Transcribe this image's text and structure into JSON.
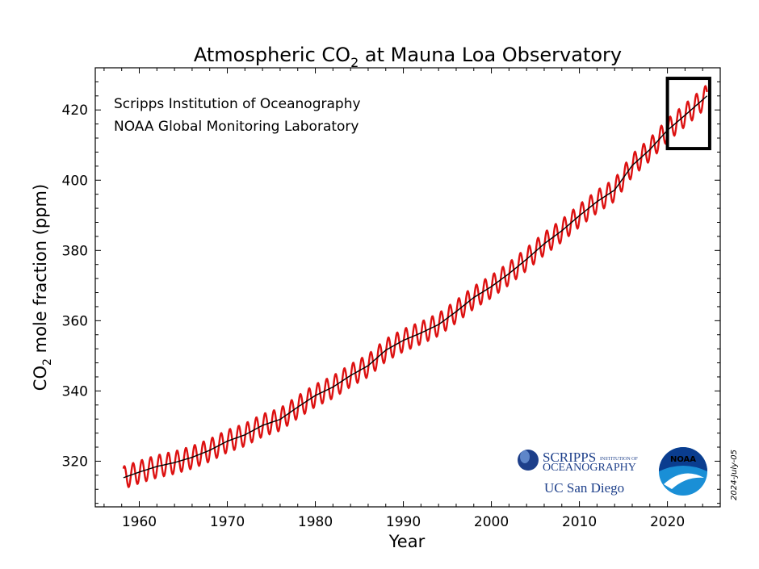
{
  "chart_data": {
    "type": "line",
    "title_main": "Atmospheric CO",
    "title_sub": "2",
    "title_rest": " at Mauna Loa Observatory",
    "xlabel": "Year",
    "ylabel_main": "CO",
    "ylabel_sub": "2",
    "ylabel_rest": " mole fraction (ppm)",
    "xlim": [
      1955,
      2026
    ],
    "ylim": [
      307,
      432
    ],
    "xticks": [
      1960,
      1970,
      1980,
      1990,
      2000,
      2010,
      2020
    ],
    "yticks": [
      320,
      340,
      360,
      380,
      400,
      420
    ],
    "annotation_lines": [
      "Scripps Institution of Oceanography",
      "NOAA Global Monitoring Laboratory"
    ],
    "date_stamp": "2024-July-05",
    "highlight_box": {
      "x": [
        2020.0,
        2024.8
      ],
      "y": [
        409,
        429
      ]
    },
    "series": [
      {
        "name": "",
        "color": "#dd1111",
        "style": "monthly, with seasonal cycle",
        "seasonal_amplitude_ppm": 3.2,
        "x": [
          1958.2,
          1960,
          1962,
          1964,
          1966,
          1968,
          1970,
          1972,
          1974,
          1976,
          1978,
          1980,
          1982,
          1984,
          1986,
          1988,
          1990,
          1992,
          1994,
          1996,
          1998,
          2000,
          2002,
          2004,
          2006,
          2008,
          2010,
          2012,
          2014,
          2016,
          2018,
          2020,
          2022,
          2024.5
        ],
        "y": [
          315.3,
          316.9,
          318.5,
          319.6,
          321.1,
          323.1,
          325.7,
          327.5,
          330.2,
          331.9,
          335.4,
          338.7,
          341.1,
          344.4,
          347.2,
          351.6,
          354.4,
          356.5,
          358.9,
          362.6,
          366.6,
          369.7,
          373.4,
          377.5,
          381.9,
          385.6,
          389.9,
          393.9,
          397.2,
          404.2,
          408.7,
          414.2,
          418.5,
          424.0
        ]
      },
      {
        "name": "",
        "color": "#000000",
        "style": "seasonally adjusted trend",
        "x": [
          1958.2,
          1960,
          1962,
          1964,
          1966,
          1968,
          1970,
          1972,
          1974,
          1976,
          1978,
          1980,
          1982,
          1984,
          1986,
          1988,
          1990,
          1992,
          1994,
          1996,
          1998,
          2000,
          2002,
          2004,
          2006,
          2008,
          2010,
          2012,
          2014,
          2016,
          2018,
          2020,
          2022,
          2024.5
        ],
        "y": [
          315.3,
          316.9,
          318.5,
          319.6,
          321.1,
          323.1,
          325.7,
          327.5,
          330.2,
          331.9,
          335.4,
          338.7,
          341.1,
          344.4,
          347.2,
          351.6,
          354.4,
          356.5,
          358.9,
          362.6,
          366.6,
          369.7,
          373.4,
          377.5,
          381.9,
          385.6,
          389.9,
          393.9,
          397.2,
          404.2,
          408.7,
          414.2,
          418.5,
          424.0
        ]
      }
    ]
  },
  "logos": {
    "scripps_line1": "SCRIPPS",
    "scripps_line1_small": "INSTITUTION OF",
    "scripps_line2": "OCEANOGRAPHY",
    "ucsd": "UC San Diego",
    "noaa": "NOAA",
    "scripps_color": "#1d3f8a",
    "noaa_color": "#1a8fd6",
    "noaa_dark": "#0a3d8f"
  }
}
